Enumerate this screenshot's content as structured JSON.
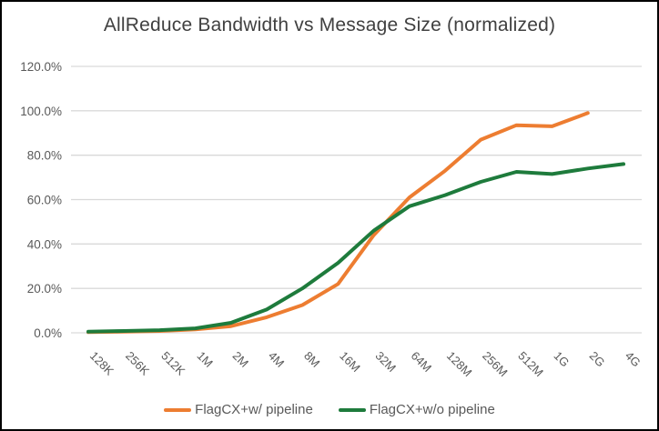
{
  "chart_data": {
    "type": "line",
    "title": "AllReduce Bandwidth vs Message Size (normalized)",
    "xlabel": "",
    "ylabel": "",
    "ylim": [
      0,
      120
    ],
    "grid": "horizontal",
    "legend_position": "bottom",
    "yticks": [
      "0.0%",
      "20.0%",
      "40.0%",
      "60.0%",
      "80.0%",
      "100.0%",
      "120.0%"
    ],
    "ytick_values": [
      0,
      20,
      40,
      60,
      80,
      100,
      120
    ],
    "categories": [
      "128K",
      "256K",
      "512K",
      "1M",
      "2M",
      "4M",
      "8M",
      "16M",
      "32M",
      "64M",
      "128M",
      "256M",
      "512M",
      "1G",
      "2G",
      "4G"
    ],
    "series": [
      {
        "name": "FlagCX+w/ pipeline",
        "color": "#ED7D31",
        "values": [
          0.3,
          0.5,
          0.8,
          1.5,
          3,
          7,
          12.5,
          22,
          44,
          61,
          73,
          87,
          93.5,
          93,
          99,
          null
        ]
      },
      {
        "name": "FlagCX+w/o pipeline",
        "color": "#1E7B3C",
        "values": [
          0.5,
          0.8,
          1.2,
          2,
          4.5,
          10.5,
          20,
          31.5,
          46,
          57,
          62,
          68,
          72.5,
          71.5,
          74,
          76
        ]
      }
    ],
    "colors": {
      "title_text": "#404040",
      "axis_text": "#595959",
      "gridline": "#D9D9D9",
      "background": "#FFFFFF",
      "border": "#000000"
    }
  }
}
